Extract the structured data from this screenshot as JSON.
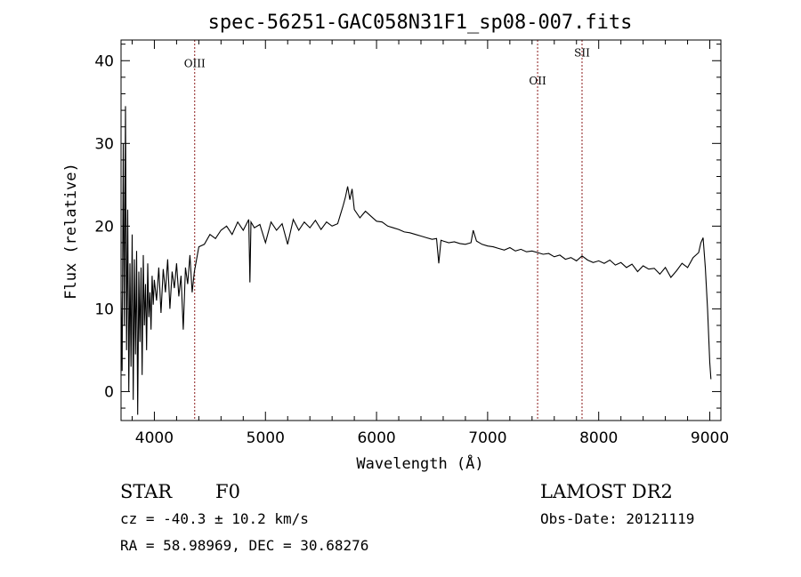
{
  "chart_data": {
    "type": "line",
    "title": "spec-56251-GAC058N31F1_sp08-007.fits",
    "xlabel": "Wavelength (Å)",
    "ylabel": "Flux (relative)",
    "xlim": [
      3700,
      9100
    ],
    "ylim": [
      -3.5,
      42.5
    ],
    "xticks": [
      4000,
      5000,
      6000,
      7000,
      8000,
      9000
    ],
    "yticks": [
      0,
      10,
      20,
      30,
      40
    ],
    "grid": false,
    "lines": [
      {
        "name": "OIII",
        "x": 4363,
        "label_y": 39.2
      },
      {
        "name": "OII",
        "x": 7450,
        "label_y": 37.1
      },
      {
        "name": "SII",
        "x": 7850,
        "label_y": 40.5
      }
    ],
    "series": [
      {
        "x": [
          3700,
          3710,
          3720,
          3730,
          3740,
          3750,
          3760,
          3770,
          3780,
          3790,
          3800,
          3810,
          3820,
          3830,
          3840,
          3850,
          3860,
          3870,
          3880,
          3890,
          3900,
          3910,
          3920,
          3930,
          3940,
          3950,
          3960,
          3970,
          3980,
          3990,
          4000,
          4020,
          4040,
          4060,
          4080,
          4100,
          4120,
          4140,
          4160,
          4180,
          4200,
          4220,
          4240,
          4260,
          4280,
          4300,
          4320,
          4340,
          4360,
          4380,
          4400,
          4450,
          4500,
          4550,
          4600,
          4650,
          4700,
          4750,
          4800,
          4850,
          4860,
          4870,
          4900,
          4950,
          5000,
          5050,
          5100,
          5150,
          5200,
          5250,
          5300,
          5350,
          5400,
          5450,
          5500,
          5550,
          5600,
          5650,
          5700,
          5720,
          5740,
          5760,
          5780,
          5800,
          5850,
          5900,
          5950,
          6000,
          6050,
          6100,
          6150,
          6200,
          6250,
          6300,
          6350,
          6400,
          6450,
          6500,
          6540,
          6560,
          6580,
          6600,
          6650,
          6700,
          6750,
          6800,
          6850,
          6870,
          6900,
          6950,
          7000,
          7050,
          7100,
          7150,
          7200,
          7250,
          7300,
          7350,
          7400,
          7450,
          7500,
          7550,
          7600,
          7650,
          7700,
          7750,
          7800,
          7850,
          7900,
          7950,
          8000,
          8050,
          8100,
          8150,
          8200,
          8250,
          8300,
          8350,
          8400,
          8450,
          8500,
          8550,
          8600,
          8650,
          8700,
          8750,
          8800,
          8850,
          8900,
          8920,
          8940,
          8960,
          8980,
          9000,
          9010
        ],
        "values": [
          12.0,
          2.5,
          30.0,
          8.0,
          34.5,
          5.0,
          22.0,
          0.0,
          15.5,
          3.0,
          19.0,
          -1.0,
          16.0,
          4.5,
          17.0,
          -2.8,
          14.5,
          6.0,
          15.0,
          2.0,
          16.5,
          8.0,
          13.0,
          5.0,
          15.5,
          9.0,
          12.0,
          7.5,
          14.0,
          10.5,
          13.5,
          11.0,
          15.0,
          9.5,
          14.8,
          12.0,
          16.0,
          10.0,
          14.5,
          12.5,
          15.5,
          11.5,
          14.0,
          7.5,
          15.0,
          13.0,
          16.5,
          12.0,
          14.5,
          16.0,
          17.5,
          17.8,
          19.0,
          18.5,
          19.5,
          20.0,
          19.0,
          20.5,
          19.5,
          20.8,
          13.2,
          20.5,
          19.8,
          20.2,
          18.0,
          20.5,
          19.5,
          20.3,
          17.8,
          20.8,
          19.5,
          20.5,
          19.8,
          20.7,
          19.6,
          20.5,
          20.0,
          20.3,
          22.5,
          23.5,
          24.8,
          23.2,
          24.5,
          22.0,
          21.0,
          21.8,
          21.2,
          20.6,
          20.5,
          20.0,
          19.8,
          19.6,
          19.3,
          19.2,
          19.0,
          18.8,
          18.6,
          18.4,
          18.5,
          15.5,
          18.3,
          18.2,
          18.0,
          18.1,
          17.9,
          17.8,
          18.0,
          19.5,
          18.2,
          17.8,
          17.6,
          17.5,
          17.3,
          17.1,
          17.4,
          17.0,
          17.2,
          16.9,
          17.0,
          16.8,
          16.6,
          16.7,
          16.3,
          16.5,
          16.0,
          16.2,
          15.8,
          16.4,
          15.9,
          15.6,
          15.8,
          15.5,
          15.9,
          15.3,
          15.6,
          15.0,
          15.4,
          14.5,
          15.2,
          14.8,
          14.9,
          14.2,
          15.0,
          13.8,
          14.6,
          15.5,
          15.0,
          16.2,
          16.8,
          18.0,
          18.6,
          15.0,
          10.0,
          3.5,
          1.5
        ]
      }
    ]
  },
  "info": {
    "object_class": "STAR",
    "subclass": "F0",
    "survey": "LAMOST DR2",
    "redshift_line": "cz = -40.3 ± 10.2 km/s",
    "obs_date": "Obs-Date: 20121119",
    "coords": "RA =  58.98969, DEC =  30.68276"
  },
  "colors": {
    "spectrum": "#000000",
    "line_markers": "#8b1a1a",
    "background": "#ffffff"
  }
}
